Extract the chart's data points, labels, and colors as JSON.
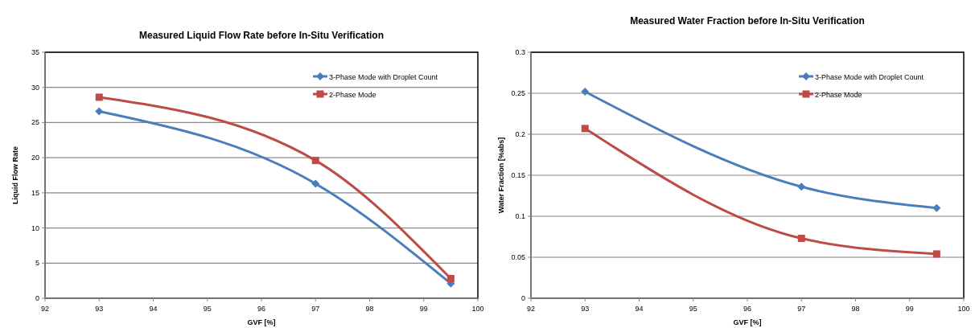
{
  "chart_data": [
    {
      "type": "line",
      "title": "Measured Liquid Flow Rate before In-Situ Verification",
      "xlabel": "GVF [%]",
      "ylabel": "Liquid Flow Rate",
      "x": [
        93,
        97,
        99.5
      ],
      "xlim": [
        92,
        100
      ],
      "xticks": [
        92,
        93,
        94,
        95,
        96,
        97,
        98,
        99,
        100
      ],
      "ylim": [
        0,
        35
      ],
      "yticks": [
        0,
        5,
        10,
        15,
        20,
        25,
        30,
        35
      ],
      "grid": "y",
      "legend": "top right",
      "line_style": "solid",
      "series": [
        {
          "name": "3-Phase Mode with Droplet Count",
          "color": "#4a7ebb",
          "marker": "diamond",
          "values": [
            26.6,
            16.3,
            2.1
          ]
        },
        {
          "name": "2-Phase Mode",
          "color": "#be4b48",
          "marker": "square",
          "values": [
            28.6,
            19.6,
            2.8
          ]
        }
      ]
    },
    {
      "type": "line",
      "title": "Measured Water Fraction before In-Situ Verification",
      "xlabel": "GVF [%]",
      "ylabel": "Water Fraction [%abs]",
      "x": [
        93,
        97,
        99.5
      ],
      "xlim": [
        92,
        100
      ],
      "xticks": [
        92,
        93,
        94,
        95,
        96,
        97,
        98,
        99,
        100
      ],
      "ylim": [
        0,
        0.3
      ],
      "yticks": [
        0,
        0.05,
        0.1,
        0.15,
        0.2,
        0.25,
        0.3
      ],
      "grid": "y",
      "legend": "top right",
      "line_style": "solid",
      "series": [
        {
          "name": "3-Phase Mode with Droplet Count",
          "color": "#4a7ebb",
          "marker": "diamond",
          "values": [
            0.252,
            0.136,
            0.11
          ]
        },
        {
          "name": "2-Phase Mode",
          "color": "#be4b48",
          "marker": "square",
          "values": [
            0.207,
            0.073,
            0.054
          ]
        }
      ]
    }
  ]
}
